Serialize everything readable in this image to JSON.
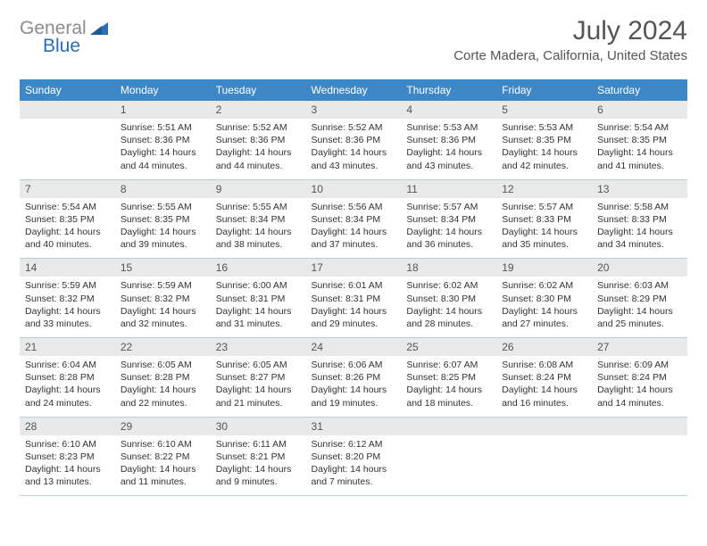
{
  "logo": {
    "general": "General",
    "blue": "Blue"
  },
  "title": "July 2024",
  "location": "Corte Madera, California, United States",
  "colors": {
    "header_bg": "#3d87c7",
    "header_text": "#ffffff",
    "daynum_bg": "#e9e9e9",
    "cell_border": "#b7cde0",
    "logo_gray": "#8c8c8c",
    "logo_blue": "#2a6db0"
  },
  "day_headers": [
    "Sunday",
    "Monday",
    "Tuesday",
    "Wednesday",
    "Thursday",
    "Friday",
    "Saturday"
  ],
  "weeks": [
    [
      {
        "day": "",
        "sunrise": "",
        "sunset": "",
        "daylight": ""
      },
      {
        "day": "1",
        "sunrise": "Sunrise: 5:51 AM",
        "sunset": "Sunset: 8:36 PM",
        "daylight": "Daylight: 14 hours and 44 minutes."
      },
      {
        "day": "2",
        "sunrise": "Sunrise: 5:52 AM",
        "sunset": "Sunset: 8:36 PM",
        "daylight": "Daylight: 14 hours and 44 minutes."
      },
      {
        "day": "3",
        "sunrise": "Sunrise: 5:52 AM",
        "sunset": "Sunset: 8:36 PM",
        "daylight": "Daylight: 14 hours and 43 minutes."
      },
      {
        "day": "4",
        "sunrise": "Sunrise: 5:53 AM",
        "sunset": "Sunset: 8:36 PM",
        "daylight": "Daylight: 14 hours and 43 minutes."
      },
      {
        "day": "5",
        "sunrise": "Sunrise: 5:53 AM",
        "sunset": "Sunset: 8:35 PM",
        "daylight": "Daylight: 14 hours and 42 minutes."
      },
      {
        "day": "6",
        "sunrise": "Sunrise: 5:54 AM",
        "sunset": "Sunset: 8:35 PM",
        "daylight": "Daylight: 14 hours and 41 minutes."
      }
    ],
    [
      {
        "day": "7",
        "sunrise": "Sunrise: 5:54 AM",
        "sunset": "Sunset: 8:35 PM",
        "daylight": "Daylight: 14 hours and 40 minutes."
      },
      {
        "day": "8",
        "sunrise": "Sunrise: 5:55 AM",
        "sunset": "Sunset: 8:35 PM",
        "daylight": "Daylight: 14 hours and 39 minutes."
      },
      {
        "day": "9",
        "sunrise": "Sunrise: 5:55 AM",
        "sunset": "Sunset: 8:34 PM",
        "daylight": "Daylight: 14 hours and 38 minutes."
      },
      {
        "day": "10",
        "sunrise": "Sunrise: 5:56 AM",
        "sunset": "Sunset: 8:34 PM",
        "daylight": "Daylight: 14 hours and 37 minutes."
      },
      {
        "day": "11",
        "sunrise": "Sunrise: 5:57 AM",
        "sunset": "Sunset: 8:34 PM",
        "daylight": "Daylight: 14 hours and 36 minutes."
      },
      {
        "day": "12",
        "sunrise": "Sunrise: 5:57 AM",
        "sunset": "Sunset: 8:33 PM",
        "daylight": "Daylight: 14 hours and 35 minutes."
      },
      {
        "day": "13",
        "sunrise": "Sunrise: 5:58 AM",
        "sunset": "Sunset: 8:33 PM",
        "daylight": "Daylight: 14 hours and 34 minutes."
      }
    ],
    [
      {
        "day": "14",
        "sunrise": "Sunrise: 5:59 AM",
        "sunset": "Sunset: 8:32 PM",
        "daylight": "Daylight: 14 hours and 33 minutes."
      },
      {
        "day": "15",
        "sunrise": "Sunrise: 5:59 AM",
        "sunset": "Sunset: 8:32 PM",
        "daylight": "Daylight: 14 hours and 32 minutes."
      },
      {
        "day": "16",
        "sunrise": "Sunrise: 6:00 AM",
        "sunset": "Sunset: 8:31 PM",
        "daylight": "Daylight: 14 hours and 31 minutes."
      },
      {
        "day": "17",
        "sunrise": "Sunrise: 6:01 AM",
        "sunset": "Sunset: 8:31 PM",
        "daylight": "Daylight: 14 hours and 29 minutes."
      },
      {
        "day": "18",
        "sunrise": "Sunrise: 6:02 AM",
        "sunset": "Sunset: 8:30 PM",
        "daylight": "Daylight: 14 hours and 28 minutes."
      },
      {
        "day": "19",
        "sunrise": "Sunrise: 6:02 AM",
        "sunset": "Sunset: 8:30 PM",
        "daylight": "Daylight: 14 hours and 27 minutes."
      },
      {
        "day": "20",
        "sunrise": "Sunrise: 6:03 AM",
        "sunset": "Sunset: 8:29 PM",
        "daylight": "Daylight: 14 hours and 25 minutes."
      }
    ],
    [
      {
        "day": "21",
        "sunrise": "Sunrise: 6:04 AM",
        "sunset": "Sunset: 8:28 PM",
        "daylight": "Daylight: 14 hours and 24 minutes."
      },
      {
        "day": "22",
        "sunrise": "Sunrise: 6:05 AM",
        "sunset": "Sunset: 8:28 PM",
        "daylight": "Daylight: 14 hours and 22 minutes."
      },
      {
        "day": "23",
        "sunrise": "Sunrise: 6:05 AM",
        "sunset": "Sunset: 8:27 PM",
        "daylight": "Daylight: 14 hours and 21 minutes."
      },
      {
        "day": "24",
        "sunrise": "Sunrise: 6:06 AM",
        "sunset": "Sunset: 8:26 PM",
        "daylight": "Daylight: 14 hours and 19 minutes."
      },
      {
        "day": "25",
        "sunrise": "Sunrise: 6:07 AM",
        "sunset": "Sunset: 8:25 PM",
        "daylight": "Daylight: 14 hours and 18 minutes."
      },
      {
        "day": "26",
        "sunrise": "Sunrise: 6:08 AM",
        "sunset": "Sunset: 8:24 PM",
        "daylight": "Daylight: 14 hours and 16 minutes."
      },
      {
        "day": "27",
        "sunrise": "Sunrise: 6:09 AM",
        "sunset": "Sunset: 8:24 PM",
        "daylight": "Daylight: 14 hours and 14 minutes."
      }
    ],
    [
      {
        "day": "28",
        "sunrise": "Sunrise: 6:10 AM",
        "sunset": "Sunset: 8:23 PM",
        "daylight": "Daylight: 14 hours and 13 minutes."
      },
      {
        "day": "29",
        "sunrise": "Sunrise: 6:10 AM",
        "sunset": "Sunset: 8:22 PM",
        "daylight": "Daylight: 14 hours and 11 minutes."
      },
      {
        "day": "30",
        "sunrise": "Sunrise: 6:11 AM",
        "sunset": "Sunset: 8:21 PM",
        "daylight": "Daylight: 14 hours and 9 minutes."
      },
      {
        "day": "31",
        "sunrise": "Sunrise: 6:12 AM",
        "sunset": "Sunset: 8:20 PM",
        "daylight": "Daylight: 14 hours and 7 minutes."
      },
      {
        "day": "",
        "sunrise": "",
        "sunset": "",
        "daylight": ""
      },
      {
        "day": "",
        "sunrise": "",
        "sunset": "",
        "daylight": ""
      },
      {
        "day": "",
        "sunrise": "",
        "sunset": "",
        "daylight": ""
      }
    ]
  ]
}
